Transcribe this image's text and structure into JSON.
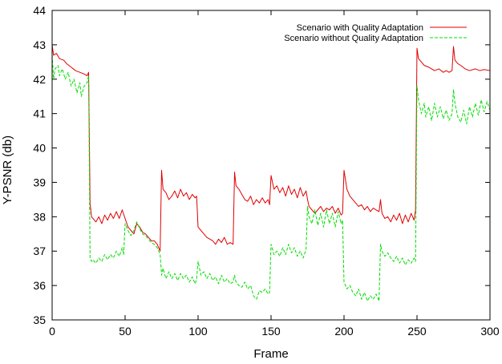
{
  "chart_data": {
    "type": "line",
    "title": "",
    "xlabel": "Frame",
    "ylabel": "Y-PSNR (db)",
    "xlim": [
      0,
      300
    ],
    "ylim": [
      35,
      44
    ],
    "xticks": [
      0,
      50,
      100,
      150,
      200,
      250,
      300
    ],
    "yticks": [
      35,
      36,
      37,
      38,
      39,
      40,
      41,
      42,
      43,
      44
    ],
    "grid": false,
    "legend_position": "top-right",
    "series": [
      {
        "name": "Scenario with Quality Adaptation",
        "color": "#e00000",
        "dash": "solid",
        "points": [
          [
            0,
            43.0
          ],
          [
            1,
            42.7
          ],
          [
            3,
            42.75
          ],
          [
            5,
            42.6
          ],
          [
            8,
            42.55
          ],
          [
            10,
            42.45
          ],
          [
            13,
            42.35
          ],
          [
            16,
            42.25
          ],
          [
            19,
            42.2
          ],
          [
            22,
            42.15
          ],
          [
            24,
            42.1
          ],
          [
            25,
            42.2
          ],
          [
            26,
            38.4
          ],
          [
            27,
            38.0
          ],
          [
            28,
            37.95
          ],
          [
            30,
            37.85
          ],
          [
            32,
            38.0
          ],
          [
            34,
            37.8
          ],
          [
            36,
            38.05
          ],
          [
            38,
            37.9
          ],
          [
            40,
            38.1
          ],
          [
            42,
            37.95
          ],
          [
            44,
            38.15
          ],
          [
            46,
            37.95
          ],
          [
            48,
            38.2
          ],
          [
            50,
            37.95
          ],
          [
            52,
            37.7
          ],
          [
            54,
            37.6
          ],
          [
            56,
            37.5
          ],
          [
            58,
            37.8
          ],
          [
            60,
            37.7
          ],
          [
            62,
            37.55
          ],
          [
            64,
            37.5
          ],
          [
            66,
            37.4
          ],
          [
            68,
            37.3
          ],
          [
            70,
            37.3
          ],
          [
            72,
            37.2
          ],
          [
            74,
            37.0
          ],
          [
            75,
            39.35
          ],
          [
            76,
            38.8
          ],
          [
            78,
            38.7
          ],
          [
            80,
            38.5
          ],
          [
            82,
            38.6
          ],
          [
            84,
            38.75
          ],
          [
            86,
            38.55
          ],
          [
            88,
            38.8
          ],
          [
            90,
            38.6
          ],
          [
            92,
            38.7
          ],
          [
            94,
            38.5
          ],
          [
            96,
            38.65
          ],
          [
            98,
            38.55
          ],
          [
            99,
            38.6
          ],
          [
            100,
            37.7
          ],
          [
            102,
            37.6
          ],
          [
            104,
            37.5
          ],
          [
            106,
            37.4
          ],
          [
            108,
            37.35
          ],
          [
            110,
            37.3
          ],
          [
            112,
            37.2
          ],
          [
            114,
            37.35
          ],
          [
            116,
            37.25
          ],
          [
            118,
            37.4
          ],
          [
            120,
            37.2
          ],
          [
            122,
            37.25
          ],
          [
            124,
            37.2
          ],
          [
            125,
            39.3
          ],
          [
            126,
            38.9
          ],
          [
            128,
            38.8
          ],
          [
            130,
            38.65
          ],
          [
            132,
            38.5
          ],
          [
            134,
            38.45
          ],
          [
            136,
            38.6
          ],
          [
            138,
            38.35
          ],
          [
            140,
            38.5
          ],
          [
            142,
            38.4
          ],
          [
            144,
            38.55
          ],
          [
            146,
            38.4
          ],
          [
            148,
            38.5
          ],
          [
            149,
            38.35
          ],
          [
            150,
            39.2
          ],
          [
            152,
            38.8
          ],
          [
            154,
            38.9
          ],
          [
            156,
            38.7
          ],
          [
            158,
            38.85
          ],
          [
            160,
            38.6
          ],
          [
            162,
            38.9
          ],
          [
            164,
            38.65
          ],
          [
            166,
            38.8
          ],
          [
            168,
            38.55
          ],
          [
            170,
            38.85
          ],
          [
            172,
            38.6
          ],
          [
            174,
            38.75
          ],
          [
            175,
            38.5
          ],
          [
            176,
            38.3
          ],
          [
            178,
            38.2
          ],
          [
            180,
            38.1
          ],
          [
            182,
            38.2
          ],
          [
            184,
            38.3
          ],
          [
            186,
            38.15
          ],
          [
            188,
            38.25
          ],
          [
            190,
            38.2
          ],
          [
            192,
            38.3
          ],
          [
            194,
            38.1
          ],
          [
            196,
            38.25
          ],
          [
            198,
            38.05
          ],
          [
            199,
            38.1
          ],
          [
            200,
            39.35
          ],
          [
            202,
            38.8
          ],
          [
            204,
            38.6
          ],
          [
            206,
            38.5
          ],
          [
            208,
            38.4
          ],
          [
            210,
            38.3
          ],
          [
            212,
            38.35
          ],
          [
            214,
            38.2
          ],
          [
            216,
            38.3
          ],
          [
            218,
            38.15
          ],
          [
            220,
            38.25
          ],
          [
            222,
            38.2
          ],
          [
            224,
            38.15
          ],
          [
            225,
            38.5
          ],
          [
            226,
            38.1
          ],
          [
            228,
            37.95
          ],
          [
            230,
            38.0
          ],
          [
            232,
            37.85
          ],
          [
            234,
            38.05
          ],
          [
            236,
            37.9
          ],
          [
            238,
            38.1
          ],
          [
            240,
            37.8
          ],
          [
            242,
            38.05
          ],
          [
            244,
            37.85
          ],
          [
            246,
            38.1
          ],
          [
            248,
            37.9
          ],
          [
            249,
            38.2
          ],
          [
            250,
            42.9
          ],
          [
            251,
            42.6
          ],
          [
            253,
            42.5
          ],
          [
            255,
            42.4
          ],
          [
            258,
            42.35
          ],
          [
            260,
            42.3
          ],
          [
            262,
            42.25
          ],
          [
            265,
            42.3
          ],
          [
            268,
            42.2
          ],
          [
            270,
            42.25
          ],
          [
            272,
            42.2
          ],
          [
            274,
            42.25
          ],
          [
            275,
            42.95
          ],
          [
            276,
            42.55
          ],
          [
            278,
            42.45
          ],
          [
            280,
            42.4
          ],
          [
            283,
            42.3
          ],
          [
            286,
            42.25
          ],
          [
            290,
            42.3
          ],
          [
            293,
            42.25
          ],
          [
            296,
            42.28
          ],
          [
            300,
            42.25
          ]
        ]
      },
      {
        "name": "Scenario without Quality Adaptation",
        "color": "#00dd00",
        "dash": "dashed",
        "points": [
          [
            0,
            42.7
          ],
          [
            1,
            42.0
          ],
          [
            2,
            42.3
          ],
          [
            4,
            42.4
          ],
          [
            5,
            42.1
          ],
          [
            7,
            42.3
          ],
          [
            9,
            42.0
          ],
          [
            11,
            42.2
          ],
          [
            13,
            41.8
          ],
          [
            15,
            42.0
          ],
          [
            17,
            41.6
          ],
          [
            19,
            41.9
          ],
          [
            20,
            41.5
          ],
          [
            22,
            41.8
          ],
          [
            24,
            41.9
          ],
          [
            25,
            42.1
          ],
          [
            26,
            36.8
          ],
          [
            27,
            36.7
          ],
          [
            28,
            36.75
          ],
          [
            30,
            36.65
          ],
          [
            32,
            36.8
          ],
          [
            34,
            36.7
          ],
          [
            36,
            36.9
          ],
          [
            38,
            36.75
          ],
          [
            40,
            36.9
          ],
          [
            42,
            36.8
          ],
          [
            44,
            37.0
          ],
          [
            46,
            36.85
          ],
          [
            48,
            37.1
          ],
          [
            49,
            36.9
          ],
          [
            50,
            37.8
          ],
          [
            52,
            37.6
          ],
          [
            54,
            37.45
          ],
          [
            56,
            37.6
          ],
          [
            58,
            37.85
          ],
          [
            60,
            37.65
          ],
          [
            62,
            37.5
          ],
          [
            64,
            37.45
          ],
          [
            66,
            37.35
          ],
          [
            68,
            37.25
          ],
          [
            70,
            37.2
          ],
          [
            72,
            37.1
          ],
          [
            74,
            36.9
          ],
          [
            75,
            36.3
          ],
          [
            76,
            36.5
          ],
          [
            78,
            36.2
          ],
          [
            80,
            36.4
          ],
          [
            82,
            36.2
          ],
          [
            84,
            36.35
          ],
          [
            86,
            36.15
          ],
          [
            88,
            36.35
          ],
          [
            90,
            36.2
          ],
          [
            92,
            36.3
          ],
          [
            94,
            36.1
          ],
          [
            96,
            36.25
          ],
          [
            98,
            36.05
          ],
          [
            99,
            36.2
          ],
          [
            100,
            36.7
          ],
          [
            102,
            36.3
          ],
          [
            104,
            36.4
          ],
          [
            106,
            36.2
          ],
          [
            108,
            36.35
          ],
          [
            110,
            36.15
          ],
          [
            112,
            36.25
          ],
          [
            114,
            36.05
          ],
          [
            116,
            36.3
          ],
          [
            118,
            36.1
          ],
          [
            120,
            36.2
          ],
          [
            122,
            36.05
          ],
          [
            124,
            36.1
          ],
          [
            125,
            36.3
          ],
          [
            126,
            36.1
          ],
          [
            128,
            36.0
          ],
          [
            130,
            35.95
          ],
          [
            132,
            36.1
          ],
          [
            134,
            35.9
          ],
          [
            136,
            36.0
          ],
          [
            138,
            35.7
          ],
          [
            140,
            35.6
          ],
          [
            142,
            35.85
          ],
          [
            144,
            35.8
          ],
          [
            146,
            35.9
          ],
          [
            148,
            35.75
          ],
          [
            149,
            35.8
          ],
          [
            150,
            37.2
          ],
          [
            152,
            36.9
          ],
          [
            154,
            37.0
          ],
          [
            156,
            36.85
          ],
          [
            158,
            37.1
          ],
          [
            160,
            36.9
          ],
          [
            162,
            37.2
          ],
          [
            164,
            36.95
          ],
          [
            166,
            37.1
          ],
          [
            168,
            36.85
          ],
          [
            170,
            37.0
          ],
          [
            172,
            36.8
          ],
          [
            174,
            37.05
          ],
          [
            175,
            38.3
          ],
          [
            176,
            38.0
          ],
          [
            178,
            37.8
          ],
          [
            180,
            38.2
          ],
          [
            182,
            37.75
          ],
          [
            184,
            38.1
          ],
          [
            186,
            37.7
          ],
          [
            188,
            38.2
          ],
          [
            190,
            37.8
          ],
          [
            192,
            38.1
          ],
          [
            194,
            37.7
          ],
          [
            196,
            38.15
          ],
          [
            198,
            37.8
          ],
          [
            199,
            37.9
          ],
          [
            200,
            36.1
          ],
          [
            202,
            35.9
          ],
          [
            204,
            36.0
          ],
          [
            206,
            35.8
          ],
          [
            208,
            35.7
          ],
          [
            210,
            35.9
          ],
          [
            212,
            35.6
          ],
          [
            214,
            35.8
          ],
          [
            216,
            35.55
          ],
          [
            218,
            35.7
          ],
          [
            220,
            35.6
          ],
          [
            222,
            35.75
          ],
          [
            224,
            35.55
          ],
          [
            225,
            37.2
          ],
          [
            226,
            37.0
          ],
          [
            228,
            36.85
          ],
          [
            230,
            36.95
          ],
          [
            232,
            36.8
          ],
          [
            234,
            36.7
          ],
          [
            236,
            36.85
          ],
          [
            238,
            36.65
          ],
          [
            240,
            36.8
          ],
          [
            242,
            36.6
          ],
          [
            244,
            36.75
          ],
          [
            246,
            36.65
          ],
          [
            248,
            36.8
          ],
          [
            249,
            36.7
          ],
          [
            250,
            41.8
          ],
          [
            251,
            41.4
          ],
          [
            253,
            41.0
          ],
          [
            255,
            41.3
          ],
          [
            256,
            40.9
          ],
          [
            258,
            41.2
          ],
          [
            260,
            40.8
          ],
          [
            262,
            41.3
          ],
          [
            264,
            40.9
          ],
          [
            266,
            41.2
          ],
          [
            268,
            40.85
          ],
          [
            270,
            41.1
          ],
          [
            272,
            40.8
          ],
          [
            274,
            41.0
          ],
          [
            275,
            41.7
          ],
          [
            276,
            41.3
          ],
          [
            278,
            40.9
          ],
          [
            280,
            40.75
          ],
          [
            282,
            41.1
          ],
          [
            284,
            40.7
          ],
          [
            286,
            41.2
          ],
          [
            288,
            40.9
          ],
          [
            290,
            41.3
          ],
          [
            292,
            40.95
          ],
          [
            294,
            41.4
          ],
          [
            296,
            41.05
          ],
          [
            298,
            41.35
          ],
          [
            300,
            41.1
          ]
        ]
      }
    ]
  }
}
